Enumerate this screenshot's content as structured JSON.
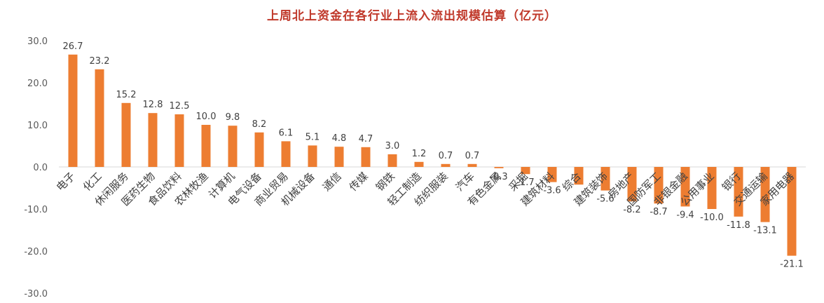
{
  "chart_data": {
    "type": "bar",
    "title": "上周北上资金在各行业上流入流出规模估算（亿元）",
    "xlabel": "",
    "ylabel": "",
    "ylim": [
      -30,
      30
    ],
    "yticks": [
      "30.0",
      "20.0",
      "10.0",
      "0.0",
      "-10.0",
      "-20.0",
      "-30.0"
    ],
    "grid": false,
    "legend": "none",
    "bar_color": "#ed7d31",
    "title_color": "#c0392b",
    "categories": [
      "电子",
      "化工",
      "休闲服务",
      "医药生物",
      "食品饮料",
      "农林牧渔",
      "计算机",
      "电气设备",
      "商业贸易",
      "机械设备",
      "通信",
      "传媒",
      "钢铁",
      "轻工制造",
      "纺织服装",
      "汽车",
      "有色金属",
      "采掘",
      "建筑材料",
      "综合",
      "建筑装饰",
      "房地产",
      "国防军工",
      "非银金融",
      "公用事业",
      "银行",
      "交通运输",
      "家用电器"
    ],
    "values": [
      26.7,
      23.2,
      15.2,
      12.8,
      12.5,
      10.0,
      9.8,
      8.2,
      6.1,
      5.1,
      4.8,
      4.7,
      3.0,
      1.2,
      0.7,
      0.7,
      -0.3,
      -1.7,
      -3.6,
      -4.2,
      -5.6,
      -8.2,
      -8.7,
      -9.4,
      -10.0,
      -11.8,
      -13.1,
      -21.1
    ],
    "data_labels": [
      "26.7",
      "23.2",
      "15.2",
      "12.8",
      "12.5",
      "10.0",
      "9.8",
      "8.2",
      "6.1",
      "5.1",
      "4.8",
      "4.7",
      "3.0",
      "1.2",
      "0.7",
      "0.7",
      "-0.3",
      "-1.7",
      "-3.6",
      "",
      "-5.6",
      "-8.2",
      "-8.7",
      "-9.4",
      "-10.0",
      "-11.8",
      "-13.1",
      "-21.1"
    ]
  }
}
